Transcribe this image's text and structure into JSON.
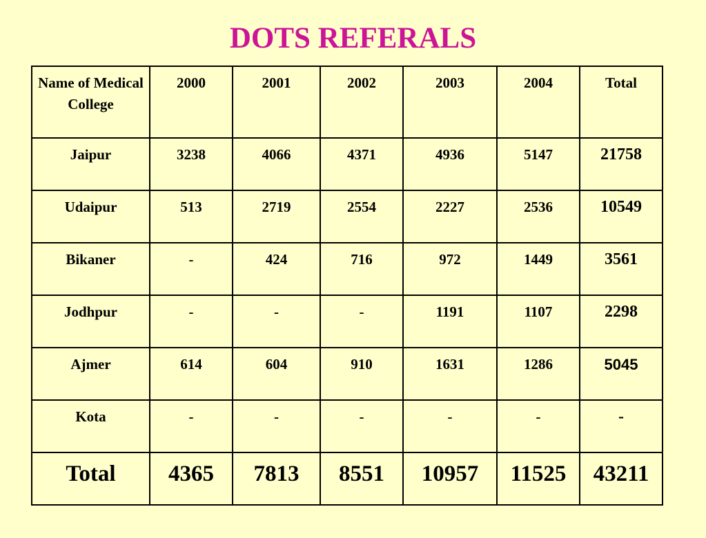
{
  "title": "DOTS REFERALS",
  "table": {
    "headers": [
      "Name of Medical College",
      "2000",
      "2001",
      "2002",
      "2003",
      "2004",
      "Total"
    ],
    "rows": [
      [
        "Jaipur",
        "3238",
        "4066",
        "4371",
        "4936",
        "5147",
        "21758"
      ],
      [
        "Udaipur",
        "513",
        "2719",
        "2554",
        "2227",
        "2536",
        "10549"
      ],
      [
        "Bikaner",
        "-",
        "424",
        "716",
        "972",
        "1449",
        "3561"
      ],
      [
        "Jodhpur",
        "-",
        "-",
        "-",
        "1191",
        "1107",
        "2298"
      ],
      [
        "Ajmer",
        "614",
        "604",
        "910",
        "1631",
        "1286",
        "5045"
      ],
      [
        "Kota",
        "-",
        "-",
        "-",
        "-",
        "-",
        "-"
      ]
    ],
    "total_row": [
      "Total",
      "4365",
      "7813",
      "8551",
      "10957",
      "11525",
      "43211"
    ]
  }
}
